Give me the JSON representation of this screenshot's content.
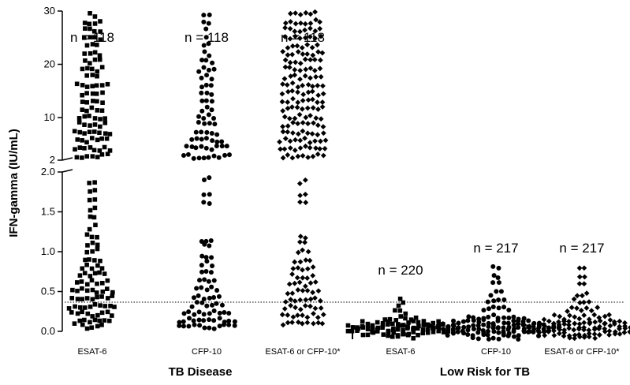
{
  "chart_data": {
    "type": "scatter",
    "ylabel": "IFN-gamma (IU/mL)",
    "y_axis": {
      "lower_segment": {
        "range": [
          0,
          2.0
        ],
        "ticks": [
          "0.0",
          "0.5",
          "1.0",
          "1.5",
          "2.0"
        ]
      },
      "upper_segment": {
        "range": [
          2,
          30
        ],
        "ticks": [
          "2",
          "10",
          "20",
          "30"
        ]
      },
      "broken": true
    },
    "cutoff_line": {
      "value": 0.35,
      "style": "dotted"
    },
    "groups": [
      {
        "label": "TB Disease",
        "categories": [
          "ESAT-6",
          "CFP-10",
          "ESAT-6 or CFP-10*"
        ]
      },
      {
        "label": "Low Risk for TB",
        "categories": [
          "ESAT-6",
          "CFP-10",
          "ESAT-6 or CFP-10*"
        ]
      }
    ],
    "series": [
      {
        "group": "TB Disease",
        "category": "ESAT-6",
        "n_label": "n = 118",
        "marker": "square"
      },
      {
        "group": "TB Disease",
        "category": "CFP-10",
        "n_label": "n = 118",
        "marker": "circle"
      },
      {
        "group": "TB Disease",
        "category": "ESAT-6 or CFP-10*",
        "n_label": "n = 118",
        "marker": "diamond"
      },
      {
        "group": "Low Risk for TB",
        "category": "ESAT-6",
        "n_label": "n = 220",
        "marker": "square"
      },
      {
        "group": "Low Risk for TB",
        "category": "CFP-10",
        "n_label": "n = 217",
        "marker": "circle"
      },
      {
        "group": "Low Risk for TB",
        "category": "ESAT-6 or CFP-10*",
        "n_label": "n = 217",
        "marker": "diamond"
      }
    ],
    "grid": false,
    "legend": "none"
  }
}
